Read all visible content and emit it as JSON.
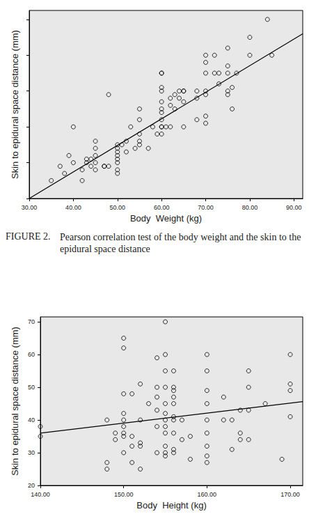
{
  "chart_data": [
    {
      "type": "scatter",
      "x_label": "Body  Weight (kg)",
      "y_label": "Skin to epidural space distance (mm)",
      "xlim": [
        30,
        92
      ],
      "ylim": [
        20,
        72.5
      ],
      "xticks": [
        {
          "value": 30,
          "label": "30.00"
        },
        {
          "value": 40,
          "label": "40.00"
        },
        {
          "value": 50,
          "label": "50.00"
        },
        {
          "value": 60,
          "label": "60.00"
        },
        {
          "value": 70,
          "label": "70.00"
        },
        {
          "value": 80,
          "label": "80.00"
        },
        {
          "value": 90,
          "label": "90.00"
        }
      ],
      "yticks": [
        20,
        30,
        40,
        50,
        60,
        70
      ],
      "tick_labels": "x",
      "grid": false,
      "marker": "open-circle",
      "color": "#000000",
      "x": [
        35,
        37,
        38,
        39,
        40,
        40,
        42,
        42,
        43,
        43,
        44,
        44,
        45,
        45,
        45,
        45,
        45,
        47,
        47,
        48,
        48,
        50,
        50,
        50,
        50,
        50,
        50,
        50,
        50,
        51,
        52,
        52,
        53,
        54,
        55,
        55,
        55,
        55,
        55,
        57,
        58,
        59,
        60,
        60,
        60,
        60,
        60,
        60,
        60,
        60,
        60,
        60,
        61,
        62,
        62,
        62,
        63,
        63,
        64,
        64,
        65,
        65,
        65,
        65,
        68,
        68,
        68,
        70,
        70,
        70,
        70,
        70,
        70,
        70,
        72,
        72,
        73,
        73,
        75,
        75,
        75,
        75,
        75,
        76,
        76,
        77,
        80,
        80,
        84,
        85,
        60
      ],
      "values": [
        25,
        29,
        27,
        32,
        30,
        40,
        25,
        28,
        30,
        31,
        29,
        31,
        28,
        30,
        32,
        34,
        36,
        29,
        29,
        49,
        29,
        27,
        28,
        30,
        31,
        32,
        33,
        34,
        35,
        35,
        33,
        36,
        40,
        34,
        35,
        36,
        38,
        42,
        45,
        34,
        40,
        38,
        38,
        40,
        40,
        42,
        44,
        45,
        47,
        50,
        51,
        55,
        40,
        40,
        46,
        48,
        45,
        49,
        48,
        50,
        40,
        47,
        50,
        50,
        42,
        48,
        50,
        41,
        43,
        49,
        50,
        55,
        58,
        60,
        55,
        60,
        52,
        55,
        49,
        50,
        55,
        57,
        62,
        45,
        51,
        55,
        60,
        65,
        70,
        60,
        55
      ],
      "fit_line": {
        "x": [
          30,
          92
        ],
        "y": [
          20,
          66
        ]
      }
    },
    {
      "type": "scatter",
      "x_label": "Body  Height (kg)",
      "y_label": "Skin to epidural space distance (mm)",
      "xlim": [
        140,
        171.5
      ],
      "ylim": [
        20,
        71.5
      ],
      "xticks": [
        {
          "value": 140,
          "label": "140.00"
        },
        {
          "value": 150,
          "label": "150.00"
        },
        {
          "value": 160,
          "label": "160.00"
        },
        {
          "value": 170,
          "label": "170.00"
        }
      ],
      "yticks": [
        20,
        30,
        40,
        50,
        60,
        70
      ],
      "grid": false,
      "marker": "open-circle",
      "color": "#000000",
      "x": [
        140,
        140,
        148,
        148,
        148,
        149,
        149,
        150,
        150,
        150,
        150,
        150,
        150,
        150,
        150,
        150,
        151,
        151,
        151,
        151,
        152,
        152,
        152,
        152,
        152,
        153,
        154,
        154,
        154,
        154,
        154,
        154,
        155,
        155,
        155,
        155,
        155,
        155,
        155,
        155,
        155,
        155,
        155,
        155,
        156,
        156,
        156,
        156,
        156,
        156,
        156,
        156,
        156,
        156,
        157,
        157,
        158,
        158,
        160,
        160,
        160,
        160,
        160,
        160,
        160,
        160,
        160,
        162,
        162,
        163,
        163,
        164,
        164,
        164,
        165,
        165,
        165,
        165,
        167,
        169,
        170,
        170,
        170,
        170
      ],
      "values": [
        35,
        38,
        25,
        27,
        40,
        34,
        36,
        30,
        35,
        36,
        38,
        40,
        42,
        48,
        62,
        65,
        27,
        32,
        35,
        48,
        25,
        32,
        33,
        40,
        51,
        45,
        30,
        38,
        43,
        47,
        50,
        59,
        29,
        30,
        32,
        36,
        38,
        40,
        42,
        45,
        50,
        55,
        60,
        70,
        30,
        31,
        36,
        40,
        41,
        45,
        47,
        49,
        50,
        55,
        34,
        40,
        28,
        35,
        27,
        29,
        32,
        36,
        40,
        45,
        49,
        55,
        60,
        40,
        47,
        31,
        40,
        34,
        36,
        43,
        34,
        43,
        50,
        55,
        45,
        28,
        41,
        49,
        51,
        60
      ],
      "fit_line": {
        "x": [
          140,
          171.5
        ],
        "y": [
          36,
          45.6
        ]
      }
    }
  ],
  "caption": {
    "label": "FIGURE 2.",
    "text": "Pearson correlation test of the body weight and the skin to the epidural space distance"
  }
}
